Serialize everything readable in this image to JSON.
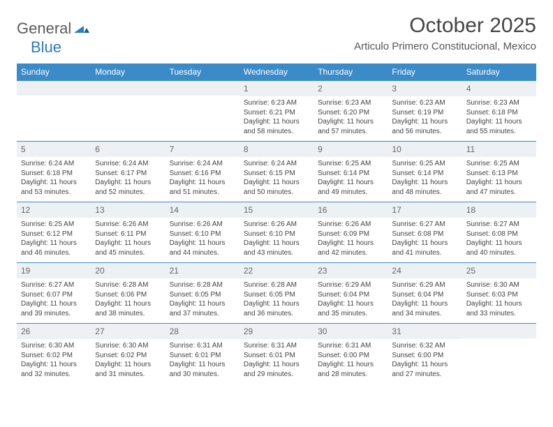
{
  "logo": {
    "part1": "General",
    "part2": "Blue"
  },
  "title": "October 2025",
  "location": "Articulo Primero Constitucional, Mexico",
  "colors": {
    "header_bg": "#3b8bc9",
    "header_text": "#ffffff",
    "daynum_bg": "#eef1f3",
    "border": "#3b8bc9",
    "logo_gray": "#5a5a5a",
    "logo_blue": "#2b7bbf"
  },
  "weekdays": [
    "Sunday",
    "Monday",
    "Tuesday",
    "Wednesday",
    "Thursday",
    "Friday",
    "Saturday"
  ],
  "weeks": [
    [
      null,
      null,
      null,
      {
        "n": "1",
        "sunrise": "6:23 AM",
        "sunset": "6:21 PM",
        "daylight": "11 hours and 58 minutes."
      },
      {
        "n": "2",
        "sunrise": "6:23 AM",
        "sunset": "6:20 PM",
        "daylight": "11 hours and 57 minutes."
      },
      {
        "n": "3",
        "sunrise": "6:23 AM",
        "sunset": "6:19 PM",
        "daylight": "11 hours and 56 minutes."
      },
      {
        "n": "4",
        "sunrise": "6:23 AM",
        "sunset": "6:18 PM",
        "daylight": "11 hours and 55 minutes."
      }
    ],
    [
      {
        "n": "5",
        "sunrise": "6:24 AM",
        "sunset": "6:18 PM",
        "daylight": "11 hours and 53 minutes."
      },
      {
        "n": "6",
        "sunrise": "6:24 AM",
        "sunset": "6:17 PM",
        "daylight": "11 hours and 52 minutes."
      },
      {
        "n": "7",
        "sunrise": "6:24 AM",
        "sunset": "6:16 PM",
        "daylight": "11 hours and 51 minutes."
      },
      {
        "n": "8",
        "sunrise": "6:24 AM",
        "sunset": "6:15 PM",
        "daylight": "11 hours and 50 minutes."
      },
      {
        "n": "9",
        "sunrise": "6:25 AM",
        "sunset": "6:14 PM",
        "daylight": "11 hours and 49 minutes."
      },
      {
        "n": "10",
        "sunrise": "6:25 AM",
        "sunset": "6:14 PM",
        "daylight": "11 hours and 48 minutes."
      },
      {
        "n": "11",
        "sunrise": "6:25 AM",
        "sunset": "6:13 PM",
        "daylight": "11 hours and 47 minutes."
      }
    ],
    [
      {
        "n": "12",
        "sunrise": "6:25 AM",
        "sunset": "6:12 PM",
        "daylight": "11 hours and 46 minutes."
      },
      {
        "n": "13",
        "sunrise": "6:26 AM",
        "sunset": "6:11 PM",
        "daylight": "11 hours and 45 minutes."
      },
      {
        "n": "14",
        "sunrise": "6:26 AM",
        "sunset": "6:10 PM",
        "daylight": "11 hours and 44 minutes."
      },
      {
        "n": "15",
        "sunrise": "6:26 AM",
        "sunset": "6:10 PM",
        "daylight": "11 hours and 43 minutes."
      },
      {
        "n": "16",
        "sunrise": "6:26 AM",
        "sunset": "6:09 PM",
        "daylight": "11 hours and 42 minutes."
      },
      {
        "n": "17",
        "sunrise": "6:27 AM",
        "sunset": "6:08 PM",
        "daylight": "11 hours and 41 minutes."
      },
      {
        "n": "18",
        "sunrise": "6:27 AM",
        "sunset": "6:08 PM",
        "daylight": "11 hours and 40 minutes."
      }
    ],
    [
      {
        "n": "19",
        "sunrise": "6:27 AM",
        "sunset": "6:07 PM",
        "daylight": "11 hours and 39 minutes."
      },
      {
        "n": "20",
        "sunrise": "6:28 AM",
        "sunset": "6:06 PM",
        "daylight": "11 hours and 38 minutes."
      },
      {
        "n": "21",
        "sunrise": "6:28 AM",
        "sunset": "6:05 PM",
        "daylight": "11 hours and 37 minutes."
      },
      {
        "n": "22",
        "sunrise": "6:28 AM",
        "sunset": "6:05 PM",
        "daylight": "11 hours and 36 minutes."
      },
      {
        "n": "23",
        "sunrise": "6:29 AM",
        "sunset": "6:04 PM",
        "daylight": "11 hours and 35 minutes."
      },
      {
        "n": "24",
        "sunrise": "6:29 AM",
        "sunset": "6:04 PM",
        "daylight": "11 hours and 34 minutes."
      },
      {
        "n": "25",
        "sunrise": "6:30 AM",
        "sunset": "6:03 PM",
        "daylight": "11 hours and 33 minutes."
      }
    ],
    [
      {
        "n": "26",
        "sunrise": "6:30 AM",
        "sunset": "6:02 PM",
        "daylight": "11 hours and 32 minutes."
      },
      {
        "n": "27",
        "sunrise": "6:30 AM",
        "sunset": "6:02 PM",
        "daylight": "11 hours and 31 minutes."
      },
      {
        "n": "28",
        "sunrise": "6:31 AM",
        "sunset": "6:01 PM",
        "daylight": "11 hours and 30 minutes."
      },
      {
        "n": "29",
        "sunrise": "6:31 AM",
        "sunset": "6:01 PM",
        "daylight": "11 hours and 29 minutes."
      },
      {
        "n": "30",
        "sunrise": "6:31 AM",
        "sunset": "6:00 PM",
        "daylight": "11 hours and 28 minutes."
      },
      {
        "n": "31",
        "sunrise": "6:32 AM",
        "sunset": "6:00 PM",
        "daylight": "11 hours and 27 minutes."
      },
      null
    ]
  ],
  "labels": {
    "sunrise": "Sunrise:",
    "sunset": "Sunset:",
    "daylight": "Daylight:"
  }
}
